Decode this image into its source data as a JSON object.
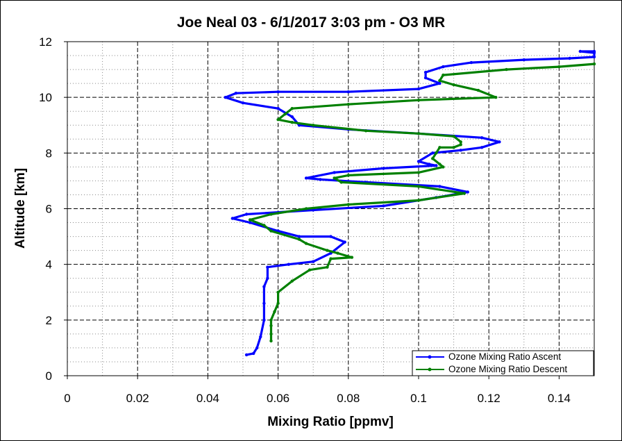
{
  "chart_data": {
    "type": "line",
    "title": "Joe Neal 03 - 6/1/2017 3:03 pm - O3 MR",
    "xlabel": "Mixing Ratio [ppmv]",
    "ylabel": "Altitude [km]",
    "xlim": [
      0,
      0.15
    ],
    "ylim": [
      0,
      12
    ],
    "x_ticks": [
      "0",
      "0.02",
      "0.04",
      "0.06",
      "0.08",
      "0.1",
      "0.12",
      "0.14"
    ],
    "y_ticks": [
      "0",
      "2",
      "4",
      "6",
      "8",
      "10",
      "12"
    ],
    "grid": true,
    "legend_position": "bottom-right",
    "series": [
      {
        "name": "Ozone Mixing Ratio Ascent",
        "color": "#0000ff",
        "points": [
          [
            0.051,
            0.75
          ],
          [
            0.053,
            0.8
          ],
          [
            0.054,
            1.0
          ],
          [
            0.055,
            1.4
          ],
          [
            0.056,
            2.0
          ],
          [
            0.056,
            2.6
          ],
          [
            0.056,
            3.2
          ],
          [
            0.057,
            3.5
          ],
          [
            0.057,
            3.9
          ],
          [
            0.063,
            4.0
          ],
          [
            0.07,
            4.1
          ],
          [
            0.075,
            4.4
          ],
          [
            0.079,
            4.8
          ],
          [
            0.075,
            5.0
          ],
          [
            0.066,
            5.0
          ],
          [
            0.06,
            5.2
          ],
          [
            0.052,
            5.5
          ],
          [
            0.047,
            5.65
          ],
          [
            0.051,
            5.8
          ],
          [
            0.07,
            5.95
          ],
          [
            0.09,
            6.1
          ],
          [
            0.105,
            6.4
          ],
          [
            0.114,
            6.6
          ],
          [
            0.106,
            6.8
          ],
          [
            0.085,
            6.95
          ],
          [
            0.072,
            7.05
          ],
          [
            0.068,
            7.1
          ],
          [
            0.076,
            7.3
          ],
          [
            0.09,
            7.45
          ],
          [
            0.105,
            7.55
          ],
          [
            0.103,
            7.6
          ],
          [
            0.1,
            7.7
          ],
          [
            0.104,
            8.0
          ],
          [
            0.112,
            8.1
          ],
          [
            0.118,
            8.2
          ],
          [
            0.123,
            8.4
          ],
          [
            0.118,
            8.55
          ],
          [
            0.1,
            8.7
          ],
          [
            0.08,
            8.85
          ],
          [
            0.066,
            9.0
          ],
          [
            0.064,
            9.3
          ],
          [
            0.06,
            9.6
          ],
          [
            0.05,
            9.8
          ],
          [
            0.045,
            10.0
          ],
          [
            0.048,
            10.15
          ],
          [
            0.06,
            10.2
          ],
          [
            0.08,
            10.2
          ],
          [
            0.1,
            10.3
          ],
          [
            0.106,
            10.5
          ],
          [
            0.102,
            10.7
          ],
          [
            0.102,
            10.9
          ],
          [
            0.107,
            11.1
          ],
          [
            0.115,
            11.25
          ],
          [
            0.13,
            11.35
          ],
          [
            0.143,
            11.4
          ],
          [
            0.15,
            11.45
          ],
          [
            0.15,
            11.6
          ],
          [
            0.146,
            11.65
          ],
          [
            0.15,
            11.65
          ]
        ]
      },
      {
        "name": "Ozone Mixing Ratio Descent",
        "color": "#008000",
        "points": [
          [
            0.15,
            11.2
          ],
          [
            0.14,
            11.1
          ],
          [
            0.125,
            11.0
          ],
          [
            0.107,
            10.8
          ],
          [
            0.106,
            10.6
          ],
          [
            0.11,
            10.45
          ],
          [
            0.117,
            10.25
          ],
          [
            0.122,
            10.0
          ],
          [
            0.1,
            9.9
          ],
          [
            0.08,
            9.75
          ],
          [
            0.064,
            9.6
          ],
          [
            0.062,
            9.4
          ],
          [
            0.06,
            9.2
          ],
          [
            0.064,
            9.1
          ],
          [
            0.07,
            9.0
          ],
          [
            0.085,
            8.8
          ],
          [
            0.1,
            8.7
          ],
          [
            0.11,
            8.6
          ],
          [
            0.112,
            8.4
          ],
          [
            0.112,
            8.3
          ],
          [
            0.11,
            8.2
          ],
          [
            0.106,
            8.2
          ],
          [
            0.105,
            8.0
          ],
          [
            0.104,
            7.8
          ],
          [
            0.106,
            7.6
          ],
          [
            0.107,
            7.5
          ],
          [
            0.1,
            7.3
          ],
          [
            0.08,
            7.2
          ],
          [
            0.076,
            7.1
          ],
          [
            0.078,
            6.95
          ],
          [
            0.1,
            6.8
          ],
          [
            0.113,
            6.55
          ],
          [
            0.1,
            6.3
          ],
          [
            0.08,
            6.15
          ],
          [
            0.068,
            6.0
          ],
          [
            0.058,
            5.8
          ],
          [
            0.052,
            5.6
          ],
          [
            0.056,
            5.4
          ],
          [
            0.058,
            5.2
          ],
          [
            0.066,
            4.9
          ],
          [
            0.068,
            4.75
          ],
          [
            0.074,
            4.5
          ],
          [
            0.077,
            4.4
          ],
          [
            0.081,
            4.25
          ],
          [
            0.075,
            4.2
          ],
          [
            0.074,
            3.9
          ],
          [
            0.069,
            3.8
          ],
          [
            0.064,
            3.4
          ],
          [
            0.06,
            3.0
          ],
          [
            0.06,
            2.6
          ],
          [
            0.059,
            2.3
          ],
          [
            0.058,
            2.0
          ],
          [
            0.058,
            1.8
          ],
          [
            0.058,
            1.5
          ],
          [
            0.058,
            1.25
          ]
        ]
      }
    ]
  }
}
